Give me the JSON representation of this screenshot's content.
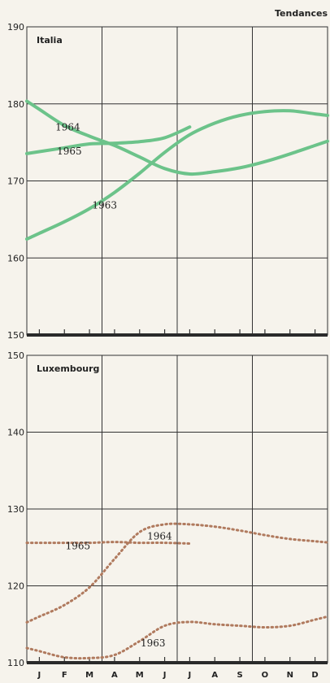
{
  "header": {
    "label": "Tendances"
  },
  "months": [
    "J",
    "F",
    "M",
    "A",
    "M",
    "J",
    "J",
    "A",
    "S",
    "O",
    "N",
    "D"
  ],
  "chart_data": [
    {
      "type": "line",
      "title": "Italia",
      "ylim": [
        150,
        190
      ],
      "yticks": [
        150,
        160,
        170,
        180,
        190
      ],
      "x_unit": "month",
      "line_color": "#6cc38a",
      "line_style": "solid",
      "series": [
        {
          "name": "1964",
          "x": [
            0,
            1,
            2,
            3,
            4,
            5,
            6,
            7,
            8,
            9,
            10,
            11
          ],
          "values": [
            179.3,
            177.2,
            175.8,
            174.6,
            173.1,
            171.6,
            170.9,
            171.2,
            171.7,
            172.5,
            173.5,
            174.6
          ]
        },
        {
          "name": "1965",
          "x": [
            0,
            1,
            2,
            3,
            4,
            5,
            6
          ],
          "values": [
            173.8,
            174.3,
            174.8,
            174.9,
            175.1,
            175.6,
            177.0
          ]
        },
        {
          "name": "1963",
          "x": [
            0,
            1,
            2,
            3,
            4,
            5,
            6,
            7,
            8,
            9,
            10,
            11
          ],
          "values": [
            163.2,
            164.7,
            166.4,
            168.5,
            171.0,
            173.7,
            176.0,
            177.5,
            178.5,
            179.0,
            179.1,
            178.7
          ]
        }
      ],
      "labels": [
        {
          "text": "1964",
          "series": "1964",
          "at_x": 0.9
        },
        {
          "text": "1965",
          "series": "1965",
          "at_x": 0.9
        },
        {
          "text": "1963",
          "series": "1963",
          "at_x": 2.5
        }
      ]
    },
    {
      "type": "line",
      "title": "Luxembourg",
      "ylim": [
        110,
        150
      ],
      "yticks": [
        110,
        120,
        130,
        140,
        150
      ],
      "x_unit": "month",
      "line_color": "#b07a5e",
      "line_style": "dotted",
      "series": [
        {
          "name": "1965",
          "x": [
            0,
            1,
            2,
            3,
            4,
            5,
            6
          ],
          "values": [
            125.6,
            125.6,
            125.6,
            125.7,
            125.6,
            125.6,
            125.5
          ]
        },
        {
          "name": "1964",
          "x": [
            0,
            1,
            2,
            3,
            4,
            5,
            6,
            7,
            8,
            9,
            10,
            11
          ],
          "values": [
            116.0,
            117.5,
            119.8,
            123.5,
            127.0,
            128.0,
            128.0,
            127.7,
            127.2,
            126.6,
            126.1,
            125.8
          ]
        },
        {
          "name": "1963",
          "x": [
            0,
            1,
            2,
            3,
            4,
            5,
            6,
            7,
            8,
            9,
            10,
            11
          ],
          "values": [
            111.5,
            110.7,
            110.6,
            111.0,
            112.8,
            114.8,
            115.3,
            115.0,
            114.8,
            114.6,
            114.8,
            115.6
          ]
        }
      ],
      "labels": [
        {
          "text": "1965",
          "series": "1965",
          "at_x": 1.5
        },
        {
          "text": "1964",
          "series": "1964",
          "at_x": 4.5
        },
        {
          "text": "1963",
          "series": "1963",
          "at_x": 4.3
        }
      ]
    }
  ]
}
